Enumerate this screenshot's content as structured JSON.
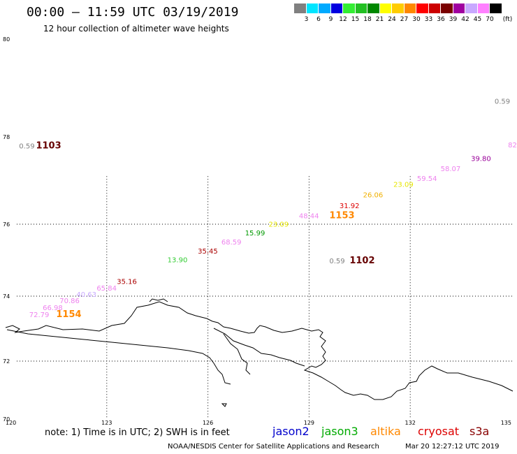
{
  "header": {
    "title": "00:00 – 11:59 UTC 03/19/2019",
    "subtitle": "12 hour collection of altimeter wave heights"
  },
  "legend": {
    "unit": "(ft)",
    "items": [
      {
        "label": "3",
        "color": "#808080"
      },
      {
        "label": "6",
        "color": "#00e5ff"
      },
      {
        "label": "9",
        "color": "#00aaff"
      },
      {
        "label": "12",
        "color": "#0000e0"
      },
      {
        "label": "15",
        "color": "#33ee33"
      },
      {
        "label": "18",
        "color": "#22c022"
      },
      {
        "label": "21",
        "color": "#008800"
      },
      {
        "label": "24",
        "color": "#ffff00"
      },
      {
        "label": "27",
        "color": "#ffcc00"
      },
      {
        "label": "30",
        "color": "#ff8800"
      },
      {
        "label": "33",
        "color": "#ff0000"
      },
      {
        "label": "36",
        "color": "#cc0000"
      },
      {
        "label": "39",
        "color": "#7a0000"
      },
      {
        "label": "42",
        "color": "#a000a0"
      },
      {
        "label": "45",
        "color": "#c8a8ff"
      },
      {
        "label": "70",
        "color": "#ff80ff"
      },
      {
        "label": "",
        "color": "#000000"
      }
    ]
  },
  "axes": {
    "lat_ticks": [
      "80",
      "78",
      "76",
      "74",
      "72",
      "70"
    ],
    "lon_ticks": [
      "120",
      "123",
      "126",
      "129",
      "132",
      "135"
    ],
    "grid": "dotted"
  },
  "wave_labels": [
    {
      "text": "0.59",
      "color": "#808080",
      "lon": 134.5,
      "lat": 78.68
    },
    {
      "text": "0.59",
      "color": "#808080",
      "lon": 120.4,
      "lat": 77.74
    },
    {
      "text": "82",
      "color": "#ee82ee",
      "lon": 134.9,
      "lat": 77.76
    },
    {
      "text": "39.80",
      "color": "#990099",
      "lon": 133.8,
      "lat": 77.45
    },
    {
      "text": "58.07",
      "color": "#ee82ee",
      "lon": 132.9,
      "lat": 77.22
    },
    {
      "text": "59.54",
      "color": "#ee82ee",
      "lon": 132.2,
      "lat": 76.99
    },
    {
      "text": "23.09",
      "color": "#e6e600",
      "lon": 131.5,
      "lat": 76.86
    },
    {
      "text": "26.06",
      "color": "#f0b000",
      "lon": 130.6,
      "lat": 76.62
    },
    {
      "text": "31.92",
      "color": "#dd0000",
      "lon": 129.9,
      "lat": 76.37
    },
    {
      "text": "48.44",
      "color": "#ee82ee",
      "lon": 128.7,
      "lat": 76.14
    },
    {
      "text": "23.09",
      "color": "#e6e600",
      "lon": 127.8,
      "lat": 75.93
    },
    {
      "text": "15.99",
      "color": "#009900",
      "lon": 127.1,
      "lat": 75.69
    },
    {
      "text": "68.59",
      "color": "#ee82ee",
      "lon": 126.4,
      "lat": 75.44
    },
    {
      "text": "35.45",
      "color": "#aa0000",
      "lon": 125.7,
      "lat": 75.18
    },
    {
      "text": "13.90",
      "color": "#33cc33",
      "lon": 124.8,
      "lat": 74.94
    },
    {
      "text": "0.59",
      "color": "#808080",
      "lon": 129.6,
      "lat": 74.91
    },
    {
      "text": "35.16",
      "color": "#aa0000",
      "lon": 123.3,
      "lat": 74.34
    },
    {
      "text": "65.84",
      "color": "#ee82ee",
      "lon": 122.7,
      "lat": 74.16
    },
    {
      "text": "40.63",
      "color": "#c8a8ff",
      "lon": 122.1,
      "lat": 73.98
    },
    {
      "text": "70.86",
      "color": "#ee82ee",
      "lon": 121.6,
      "lat": 73.79
    },
    {
      "text": "66.98",
      "color": "#ee82ee",
      "lon": 121.1,
      "lat": 73.57
    },
    {
      "text": "72.79",
      "color": "#ee82ee",
      "lon": 120.7,
      "lat": 73.35
    }
  ],
  "time_labels": [
    {
      "text": "1103",
      "color": "#660000",
      "lon": 120.9,
      "lat": 77.74
    },
    {
      "text": "1153",
      "color": "#ff8800",
      "lon": 129.6,
      "lat": 76.14
    },
    {
      "text": "1102",
      "color": "#660000",
      "lon": 130.2,
      "lat": 74.91
    },
    {
      "text": "1154",
      "color": "#ff8800",
      "lon": 121.5,
      "lat": 73.35
    }
  ],
  "footer": {
    "note": "note: 1) Time is in UTC; 2) SWH is in feet",
    "satellites": [
      {
        "name": "jason2",
        "color": "#0000cc"
      },
      {
        "name": "jason3",
        "color": "#00aa00"
      },
      {
        "name": "altika",
        "color": "#ff8800"
      },
      {
        "name": "cryosat",
        "color": "#dd0000"
      },
      {
        "name": "s3a",
        "color": "#880000"
      }
    ],
    "credit": "NOAA/NESDIS Center for Satellite Applications and Research",
    "timestamp": "Mar 20 12:27:12 UTC 2019"
  }
}
